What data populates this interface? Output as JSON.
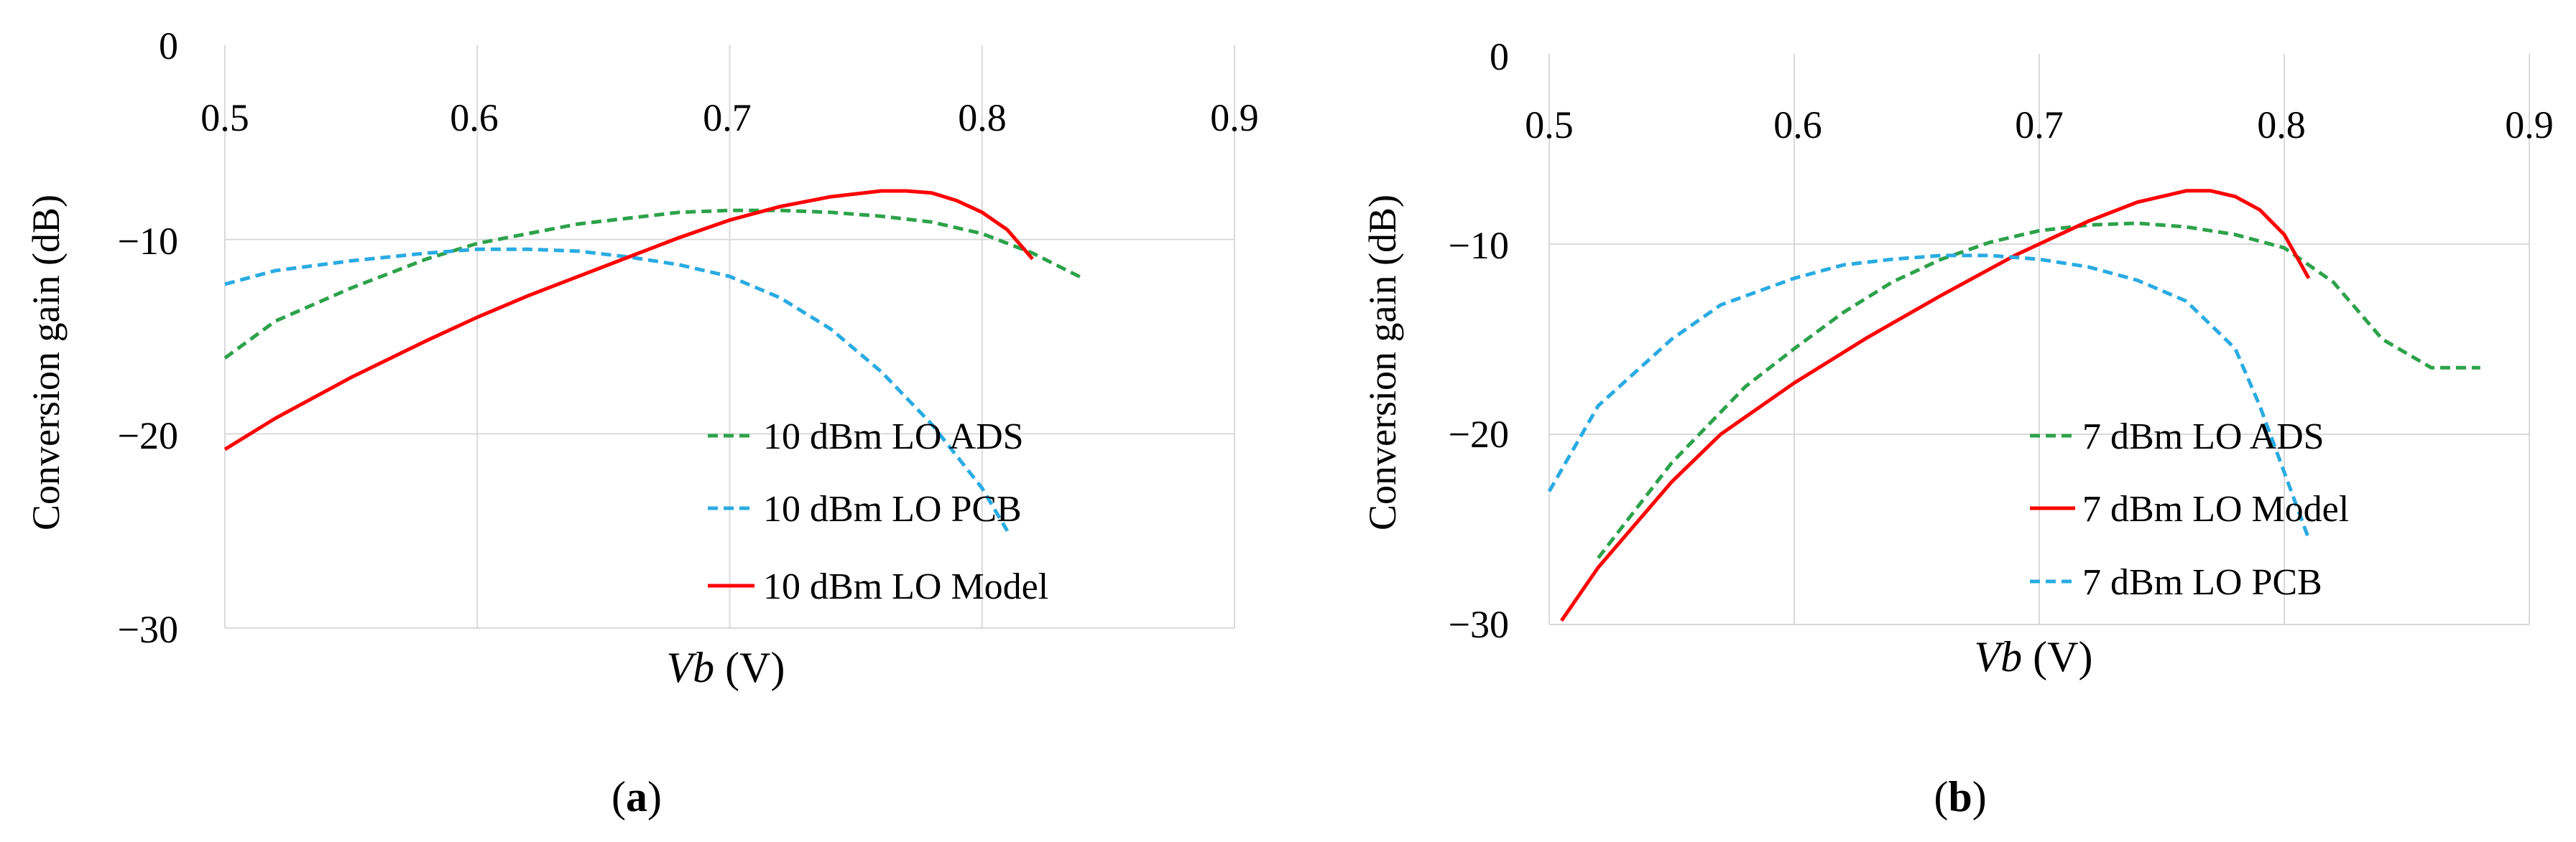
{
  "chart_data": [
    {
      "type": "line",
      "panel_label": "a",
      "xlabel_italic": "Vb",
      "xlabel_unit": "(V)",
      "ylabel": "Conversion gain (dB)",
      "xlim": [
        0.5,
        0.9
      ],
      "ylim": [
        -30,
        0
      ],
      "x_ticks": [
        "0.5",
        "0.6",
        "0.7",
        "0.8",
        "0.9"
      ],
      "y_ticks": [
        "0",
        "−10",
        "−20",
        "−30"
      ],
      "y_tick_values": [
        0,
        -10,
        -20,
        -30
      ],
      "x_tick_values": [
        0.5,
        0.6,
        0.7,
        0.8,
        0.9
      ],
      "series": [
        {
          "name": "10 dBm LO ADS",
          "color": "#2ca24a",
          "dash": "dashed",
          "x": [
            0.5,
            0.52,
            0.55,
            0.58,
            0.6,
            0.62,
            0.64,
            0.66,
            0.68,
            0.7,
            0.72,
            0.74,
            0.76,
            0.78,
            0.8,
            0.82,
            0.84
          ],
          "y": [
            -16.1,
            -14.2,
            -12.5,
            -11.0,
            -10.2,
            -9.7,
            -9.2,
            -8.9,
            -8.6,
            -8.5,
            -8.5,
            -8.6,
            -8.8,
            -9.1,
            -9.7,
            -10.7,
            -12.0
          ]
        },
        {
          "name": "10 dBm LO PCB",
          "color": "#29abe2",
          "dash": "dashed",
          "x": [
            0.5,
            0.52,
            0.55,
            0.58,
            0.6,
            0.62,
            0.64,
            0.66,
            0.68,
            0.7,
            0.72,
            0.74,
            0.76,
            0.78,
            0.8,
            0.81
          ],
          "y": [
            -12.3,
            -11.6,
            -11.1,
            -10.7,
            -10.5,
            -10.5,
            -10.6,
            -10.9,
            -11.3,
            -11.9,
            -13.0,
            -14.6,
            -16.8,
            -19.5,
            -22.8,
            -25.0
          ]
        },
        {
          "name": "10 dBm LO Model",
          "color": "#ff0000",
          "dash": "solid",
          "x": [
            0.5,
            0.52,
            0.55,
            0.58,
            0.6,
            0.62,
            0.64,
            0.66,
            0.68,
            0.7,
            0.72,
            0.74,
            0.76,
            0.77,
            0.78,
            0.79,
            0.8,
            0.81,
            0.82
          ],
          "y": [
            -20.8,
            -19.2,
            -17.1,
            -15.2,
            -14.0,
            -12.9,
            -11.9,
            -10.9,
            -9.9,
            -9.0,
            -8.3,
            -7.8,
            -7.5,
            -7.5,
            -7.6,
            -8.0,
            -8.6,
            -9.5,
            -11.0
          ]
        }
      ],
      "legend": [
        "10 dBm LO ADS",
        "10 dBm LO PCB",
        "10 dBm LO Model"
      ]
    },
    {
      "type": "line",
      "panel_label": "b",
      "xlabel_italic": "Vb",
      "xlabel_unit": "(V)",
      "ylabel": "Conversion gain (dB)",
      "xlim": [
        0.5,
        0.9
      ],
      "ylim": [
        -30,
        0
      ],
      "x_ticks": [
        "0.5",
        "0.6",
        "0.7",
        "0.8",
        "0.9"
      ],
      "y_ticks": [
        "0",
        "−10",
        "−20",
        "−30"
      ],
      "y_tick_values": [
        0,
        -10,
        -20,
        -30
      ],
      "x_tick_values": [
        0.5,
        0.6,
        0.7,
        0.8,
        0.9
      ],
      "series": [
        {
          "name": "7 dBm LO ADS",
          "color": "#2ca24a",
          "dash": "dashed",
          "x": [
            0.52,
            0.55,
            0.58,
            0.6,
            0.62,
            0.64,
            0.66,
            0.68,
            0.7,
            0.72,
            0.74,
            0.76,
            0.78,
            0.8,
            0.82,
            0.84,
            0.86,
            0.88
          ],
          "y": [
            -26.5,
            -21.5,
            -17.5,
            -15.5,
            -13.6,
            -12.0,
            -10.8,
            -9.9,
            -9.3,
            -9.0,
            -8.9,
            -9.1,
            -9.5,
            -10.2,
            -12.0,
            -15.0,
            -16.5,
            -16.5
          ]
        },
        {
          "name": "7 dBm LO Model",
          "color": "#ff0000",
          "dash": "solid",
          "x": [
            0.505,
            0.52,
            0.55,
            0.57,
            0.6,
            0.63,
            0.66,
            0.69,
            0.72,
            0.74,
            0.76,
            0.77,
            0.78,
            0.79,
            0.8,
            0.81
          ],
          "y": [
            -29.8,
            -27.0,
            -22.5,
            -20.0,
            -17.3,
            -14.9,
            -12.7,
            -10.6,
            -8.8,
            -7.8,
            -7.2,
            -7.2,
            -7.5,
            -8.2,
            -9.5,
            -11.8
          ]
        },
        {
          "name": "7 dBm LO PCB",
          "color": "#29abe2",
          "dash": "dashed",
          "x": [
            0.5,
            0.52,
            0.55,
            0.57,
            0.6,
            0.62,
            0.64,
            0.66,
            0.68,
            0.7,
            0.72,
            0.74,
            0.76,
            0.78,
            0.79,
            0.8,
            0.81
          ],
          "y": [
            -23.0,
            -18.5,
            -15.0,
            -13.2,
            -11.8,
            -11.1,
            -10.8,
            -10.6,
            -10.6,
            -10.8,
            -11.2,
            -11.9,
            -13.0,
            -15.5,
            -18.5,
            -22.0,
            -25.5
          ]
        }
      ],
      "legend": [
        "7 dBm LO ADS",
        "7 dBm LO Model",
        "7 dBm LO PCB"
      ]
    }
  ]
}
